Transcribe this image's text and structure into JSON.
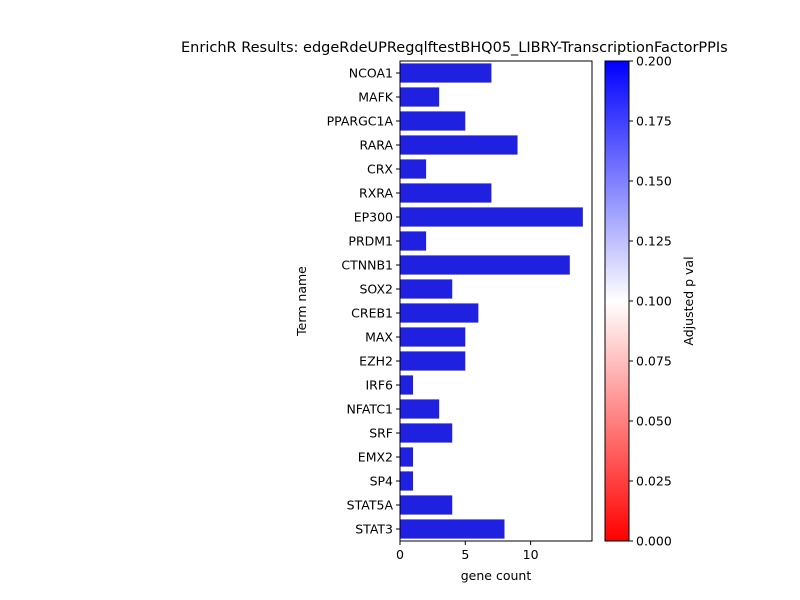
{
  "chart_data": {
    "type": "bar",
    "orientation": "horizontal",
    "title": "EnrichR Results: edgeRdeUPRegqlftestBHQ05_LIBRY-TranscriptionFactorPPIs",
    "xlabel": "gene count",
    "ylabel": "Term name",
    "categories": [
      "NCOA1",
      "MAFK",
      "PPARGC1A",
      "RARA",
      "CRX",
      "RXRA",
      "EP300",
      "PRDM1",
      "CTNNB1",
      "SOX2",
      "CREB1",
      "MAX",
      "EZH2",
      "IRF6",
      "NFATC1",
      "SRF",
      "EMX2",
      "SP4",
      "STAT5A",
      "STAT3"
    ],
    "values": [
      7,
      3,
      5,
      9,
      2,
      7,
      14,
      2,
      13,
      4,
      6,
      5,
      5,
      1,
      3,
      4,
      1,
      1,
      4,
      8
    ],
    "bar_color": "#2020e0",
    "xlim": [
      0,
      14.7
    ],
    "xticks": [
      0,
      5,
      10
    ],
    "grid": false,
    "colorbar": {
      "label": "Adjusted p val",
      "range": [
        0.0,
        0.2
      ],
      "ticks": [
        "0.000",
        "0.025",
        "0.050",
        "0.075",
        "0.100",
        "0.125",
        "0.150",
        "0.175",
        "0.200"
      ],
      "colors": [
        "#ff0000",
        "#ffffff",
        "#0000ff"
      ]
    }
  }
}
